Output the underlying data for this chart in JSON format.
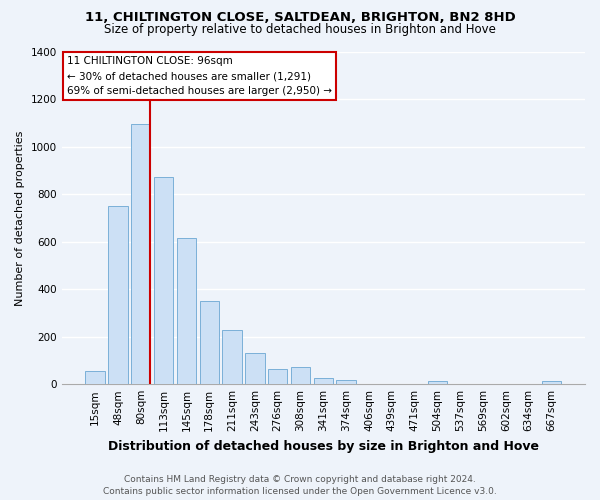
{
  "title1": "11, CHILTINGTON CLOSE, SALTDEAN, BRIGHTON, BN2 8HD",
  "title2": "Size of property relative to detached houses in Brighton and Hove",
  "xlabel": "Distribution of detached houses by size in Brighton and Hove",
  "ylabel": "Number of detached properties",
  "bin_labels": [
    "15sqm",
    "48sqm",
    "80sqm",
    "113sqm",
    "145sqm",
    "178sqm",
    "211sqm",
    "243sqm",
    "276sqm",
    "308sqm",
    "341sqm",
    "374sqm",
    "406sqm",
    "439sqm",
    "471sqm",
    "504sqm",
    "537sqm",
    "569sqm",
    "602sqm",
    "634sqm",
    "667sqm"
  ],
  "bar_heights": [
    55,
    750,
    1095,
    870,
    615,
    350,
    228,
    132,
    65,
    72,
    25,
    18,
    0,
    0,
    0,
    12,
    0,
    0,
    0,
    0,
    12
  ],
  "bar_color": "#cce0f5",
  "bar_edge_color": "#7ab0d8",
  "highlight_line_color": "#cc0000",
  "annotation_title": "11 CHILTINGTON CLOSE: 96sqm",
  "annotation_line1": "← 30% of detached houses are smaller (1,291)",
  "annotation_line2": "69% of semi-detached houses are larger (2,950) →",
  "annotation_box_color": "#ffffff",
  "annotation_box_edge": "#cc0000",
  "ylim": [
    0,
    1400
  ],
  "yticks": [
    0,
    200,
    400,
    600,
    800,
    1000,
    1200,
    1400
  ],
  "footer1": "Contains HM Land Registry data © Crown copyright and database right 2024.",
  "footer2": "Contains public sector information licensed under the Open Government Licence v3.0.",
  "bg_color": "#eef3fa",
  "grid_color": "#ffffff",
  "title1_fontsize": 9.5,
  "title2_fontsize": 8.5,
  "ylabel_fontsize": 8,
  "xlabel_fontsize": 9,
  "tick_fontsize": 7.5,
  "annotation_fontsize": 7.5,
  "footer_fontsize": 6.5
}
